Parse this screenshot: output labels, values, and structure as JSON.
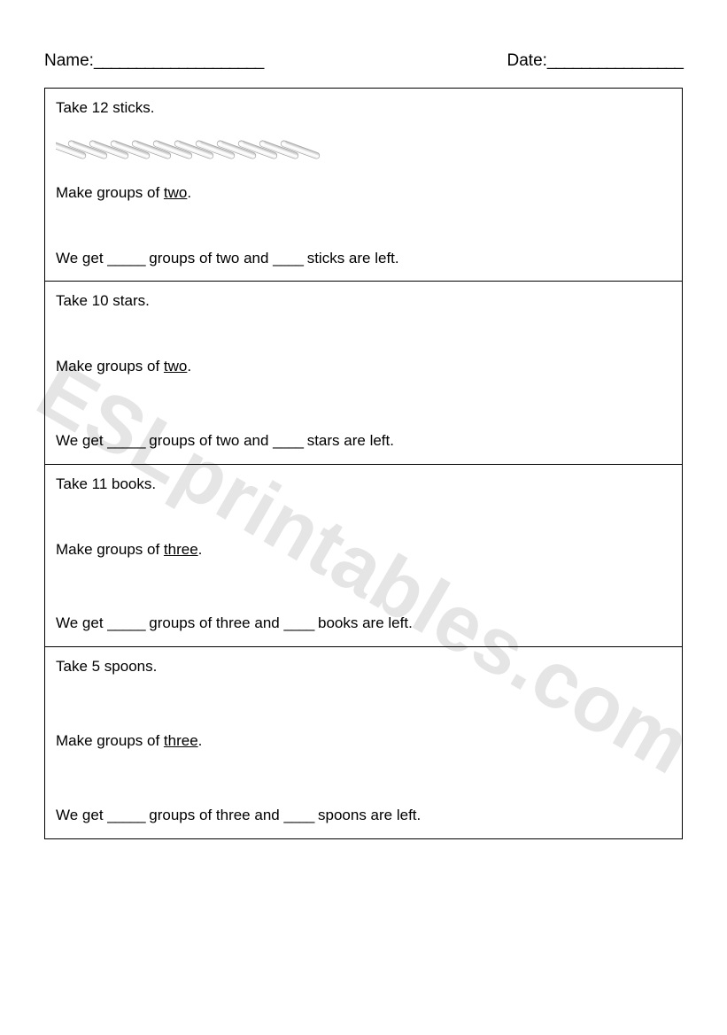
{
  "header": {
    "name_label": "Name:",
    "name_line": "____________________",
    "date_label": "Date:",
    "date_line": "________________"
  },
  "watermark_text": "ESLprintables.com",
  "sticks": {
    "count": 12,
    "color_light": "#f0f0f0",
    "color_dark": "#b8b8b8",
    "length": 46,
    "width": 7,
    "gap": 24,
    "angle_deg": 70
  },
  "cells": [
    {
      "take_line": "Take 12 sticks.",
      "has_image": true,
      "make_pre": "Make groups of ",
      "make_word": "two",
      "make_post": ".",
      "result_pre": "We get ",
      "blank1": "_____",
      "result_mid1": " groups of two and ",
      "blank2": "____",
      "result_post": " sticks are left."
    },
    {
      "take_line": "Take 10 stars.",
      "has_image": false,
      "make_pre": "Make groups of ",
      "make_word": "two",
      "make_post": ".",
      "result_pre": "We get ",
      "blank1": "_____",
      "result_mid1": " groups of two and ",
      "blank2": "____",
      "result_post": " stars are left."
    },
    {
      "take_line": "Take 11 books.",
      "has_image": false,
      "make_pre": "Make groups of ",
      "make_word": "three",
      "make_post": ".",
      "result_pre": "We get ",
      "blank1": "_____",
      "result_mid1": " groups of three and ",
      "blank2": "____",
      "result_post": " books are left."
    },
    {
      "take_line": "Take 5 spoons.",
      "has_image": false,
      "make_pre": "Make groups of ",
      "make_word": "three",
      "make_post": ".",
      "result_pre": "We get ",
      "blank1": "_____",
      "result_mid1": " groups of three and ",
      "blank2": "____",
      "result_post": " spoons are left."
    }
  ]
}
